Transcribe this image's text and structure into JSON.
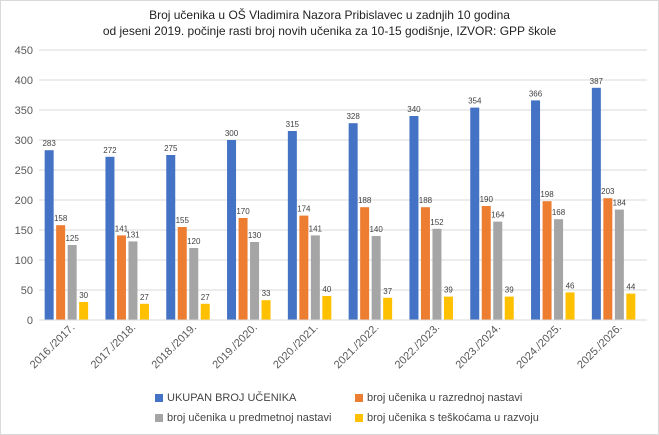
{
  "chart_data": {
    "type": "bar",
    "title_line1": "Broj učenika u OŠ Vladimira Nazora Pribislavec u zadnjih 10 godina",
    "title_line2": "od jeseni 2019. počinje rasti broj novih učenika za 10-15 godišnje, IZVOR: GPP škole",
    "categories": [
      "2016./2017.",
      "2017./2018.",
      "2018./2019.",
      "2019./2020.",
      "2020./2021.",
      "2021./2022.",
      "2022./2023.",
      "2023./2024.",
      "2024./2025.",
      "2025./2026."
    ],
    "series": [
      {
        "name": "UKUPAN BROJ UČENIKA",
        "color": "#4472C4",
        "values": [
          283,
          272,
          275,
          300,
          315,
          328,
          340,
          354,
          366,
          387
        ]
      },
      {
        "name": "broj učenika u razrednoj nastavi",
        "color": "#ED7D31",
        "values": [
          158,
          141,
          155,
          170,
          174,
          188,
          188,
          190,
          198,
          203
        ]
      },
      {
        "name": "broj učenika u predmetnoj nastavi",
        "color": "#A5A5A5",
        "values": [
          125,
          131,
          120,
          130,
          141,
          140,
          152,
          164,
          168,
          184
        ]
      },
      {
        "name": "broj učenika s teškoćama u razvoju",
        "color": "#FFC000",
        "values": [
          30,
          27,
          27,
          33,
          40,
          37,
          39,
          39,
          46,
          44
        ]
      }
    ],
    "ylim": [
      0,
      450
    ],
    "yticks": [
      0,
      50,
      100,
      150,
      200,
      250,
      300,
      350,
      400,
      450
    ],
    "grid": true,
    "legend_position": "bottom"
  }
}
